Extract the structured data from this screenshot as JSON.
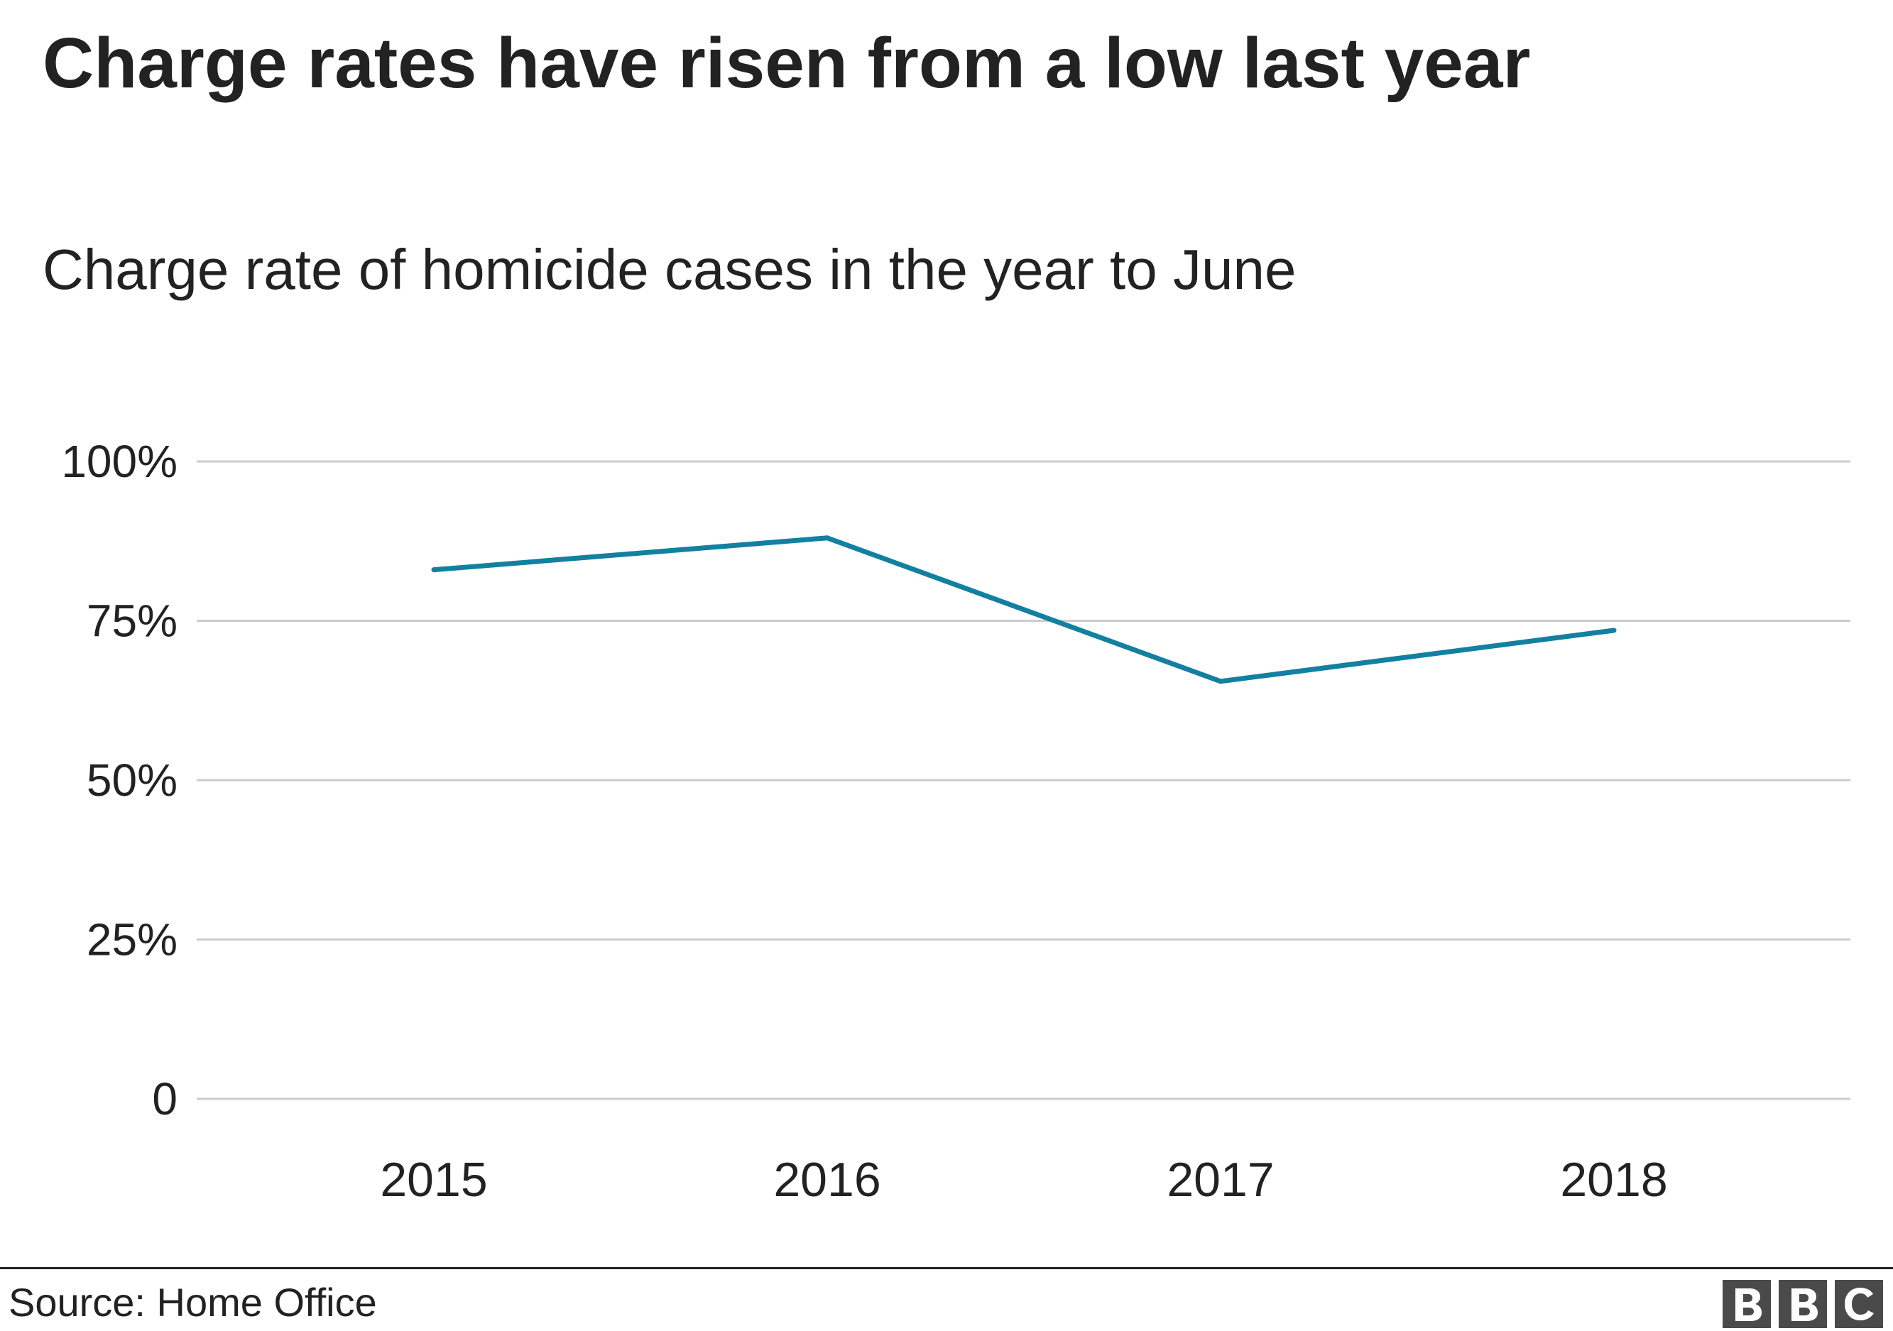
{
  "title": "Charge rates have risen from a low last year",
  "subtitle": "Charge rate of homicide cases in the year to June",
  "source": "Source: Home Office",
  "logo_text": "BBC",
  "colors": {
    "line": "#1380A1",
    "grid": "#CCCCCC",
    "text": "#222222",
    "logo": "#4A4A4A"
  },
  "chart_data": {
    "type": "line",
    "title": "Charge rates have risen from a low last year",
    "subtitle": "Charge rate of homicide cases in the year to June",
    "xlabel": "",
    "ylabel": "",
    "categories": [
      "2015",
      "2016",
      "2017",
      "2018"
    ],
    "series": [
      {
        "values": [
          83,
          88,
          65.5,
          73.5
        ]
      }
    ],
    "ylim": [
      0,
      100
    ],
    "yticks": [
      {
        "value": 0,
        "label": "0"
      },
      {
        "value": 25,
        "label": "25%"
      },
      {
        "value": 50,
        "label": "50%"
      },
      {
        "value": 75,
        "label": "75%"
      },
      {
        "value": 100,
        "label": "100%"
      }
    ],
    "grid": true,
    "legend": "none"
  }
}
